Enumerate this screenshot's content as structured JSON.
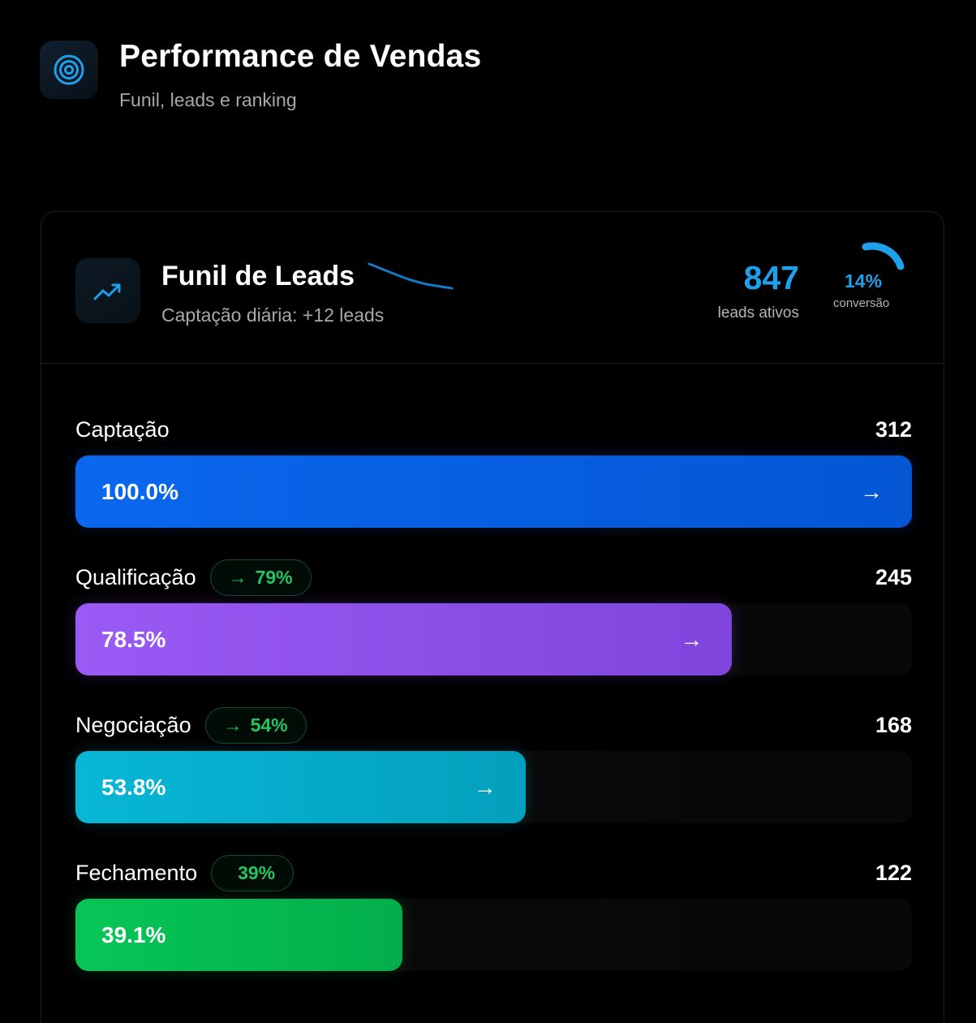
{
  "header": {
    "title": "Performance de Vendas",
    "subtitle": "Funil, leads e ranking",
    "icon": "target-icon"
  },
  "card": {
    "icon": "trending-up-icon",
    "title": "Funil de Leads",
    "subtitle": "Captação diária: +12 leads",
    "active_leads": "847",
    "active_leads_label": "leads ativos",
    "conversion": "14%",
    "conversion_value": 0.14,
    "conversion_label": "conversão"
  },
  "colors": {
    "accent": "#1ea0ea",
    "positive": "#22c55e"
  },
  "stages": [
    {
      "name": "Captação",
      "count": "312",
      "pct": "100.0%",
      "fill": 1.0,
      "conversion": "",
      "arrow": "→",
      "color_from": "#0a67ee",
      "color_to": "#0456d3"
    },
    {
      "name": "Qualificação",
      "count": "245",
      "pct": "78.5%",
      "fill": 0.785,
      "conversion": "79%",
      "arrow": "→",
      "color_from": "#9a5af5",
      "color_to": "#7f45dc"
    },
    {
      "name": "Negociação",
      "count": "168",
      "pct": "53.8%",
      "fill": 0.538,
      "conversion": "54%",
      "arrow": "→",
      "color_from": "#08b6d6",
      "color_to": "#03a0bd"
    },
    {
      "name": "Fechamento",
      "count": "122",
      "pct": "39.1%",
      "fill": 0.391,
      "conversion": "39%",
      "arrow": "",
      "color_from": "#06c657",
      "color_to": "#03ae4a"
    }
  ]
}
